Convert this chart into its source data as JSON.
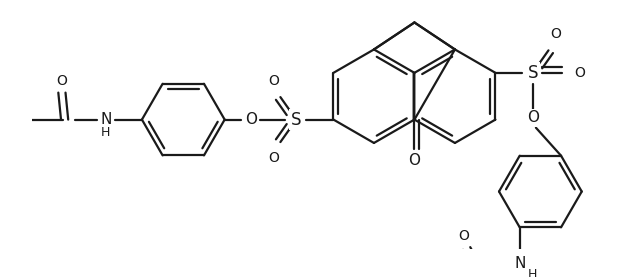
{
  "bg": "#ffffff",
  "lc": "#1a1a1a",
  "lw": 1.6,
  "figsize": [
    6.4,
    2.77
  ],
  "dpi": 100,
  "xlim": [
    0,
    640
  ],
  "ylim": [
    0,
    277
  ]
}
